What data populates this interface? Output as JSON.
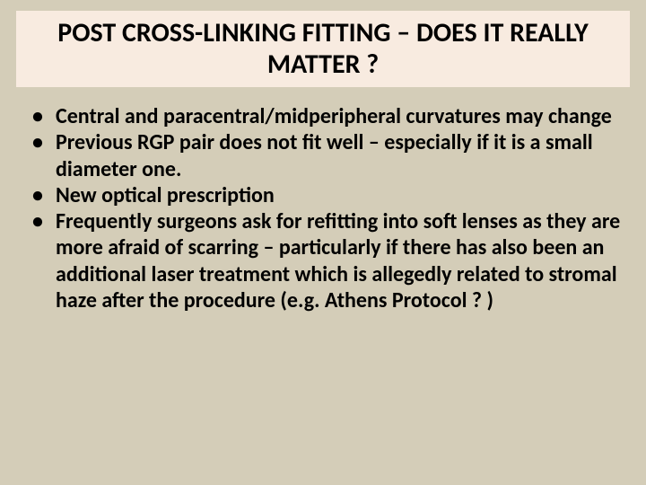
{
  "slide": {
    "title": "POST CROSS-LINKING FITTING – DOES IT REALLY MATTER ?",
    "title_bg_color": "#f8ebe0",
    "background_color": "#d4cdb8",
    "text_color": "#000000",
    "title_fontsize": 30,
    "bullet_fontsize": 24,
    "bullets": [
      "Central and paracentral/midperipheral curvatures may change",
      "Previous RGP pair does not fit well – especially if it is a small diameter one.",
      "New optical prescription",
      "Frequently surgeons ask for refitting into soft lenses as they are more afraid of scarring – particularly if there has also been an additional laser treatment which is allegedly related to stromal haze after the procedure (e.g. Athens Protocol ? )"
    ]
  }
}
